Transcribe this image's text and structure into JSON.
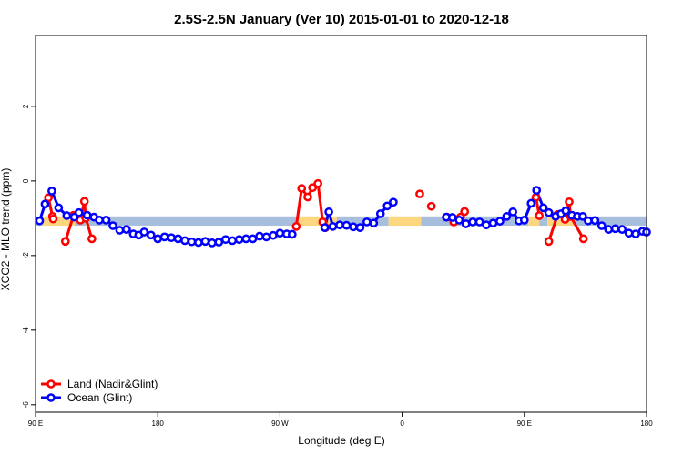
{
  "chart_data": {
    "type": "line",
    "title": "2.5S-2.5N January (Ver 10)   2015-01-01 to 2020-12-18",
    "xlabel": "Longitude (deg E)",
    "ylabel": "XCO2 - MLO trend (ppm)",
    "xlim": [
      90,
      540
    ],
    "ylim": [
      -6.2,
      3.9
    ],
    "x_ticks": [
      {
        "value": 90,
        "label": "90 E"
      },
      {
        "value": 180,
        "label": "180"
      },
      {
        "value": 270,
        "label": "90 W"
      },
      {
        "value": 360,
        "label": "0"
      },
      {
        "value": 450,
        "label": "90 E"
      },
      {
        "value": 540,
        "label": "180"
      }
    ],
    "y_ticks": [
      {
        "value": -6,
        "label": "-6"
      },
      {
        "value": -4,
        "label": "-4"
      },
      {
        "value": -2,
        "label": "-2"
      },
      {
        "value": 0,
        "label": "0"
      },
      {
        "value": 2,
        "label": "2"
      }
    ],
    "legend_position": "bottom-left",
    "band": {
      "y_low": -1.2,
      "y_high": -0.95,
      "ocean_color": "#a8bedd",
      "land_color": "#fcd77f",
      "segments": [
        {
          "type": "ocean",
          "x0": 90,
          "x1": 95
        },
        {
          "type": "land",
          "x0": 95,
          "x1": 119
        },
        {
          "type": "ocean",
          "x0": 119,
          "x1": 127
        },
        {
          "type": "land",
          "x0": 127,
          "x1": 129
        },
        {
          "type": "ocean",
          "x0": 129,
          "x1": 282
        },
        {
          "type": "land",
          "x0": 282,
          "x1": 312
        },
        {
          "type": "ocean",
          "x0": 312,
          "x1": 350
        },
        {
          "type": "land",
          "x0": 350,
          "x1": 374
        },
        {
          "type": "ocean",
          "x0": 374,
          "x1": 453
        },
        {
          "type": "land",
          "x0": 453,
          "x1": 461
        },
        {
          "type": "ocean",
          "x0": 461,
          "x1": 467
        },
        {
          "type": "land",
          "x0": 467,
          "x1": 488
        },
        {
          "type": "ocean",
          "x0": 488,
          "x1": 540
        }
      ]
    },
    "series": [
      {
        "name": "Land (Nadir&Glint)",
        "color": "#ff0000",
        "segments": [
          [
            [
              99.5,
              -0.45
            ],
            [
              102.5,
              -0.95
            ],
            [
              103,
              -1.02
            ]
          ],
          [
            [
              112,
              -1.62
            ],
            [
              118,
              -0.92
            ],
            [
              123,
              -1.05
            ],
            [
              126,
              -0.55
            ],
            [
              127,
              -1.0
            ],
            [
              131.5,
              -1.55
            ]
          ],
          [
            [
              282,
              -1.22
            ],
            [
              286,
              -0.2
            ],
            [
              290.5,
              -0.43
            ],
            [
              294,
              -0.18
            ],
            [
              298,
              -0.07
            ],
            [
              301.5,
              -1.1
            ],
            [
              303.5,
              -1.25
            ]
          ],
          [
            [
              373,
              -0.35
            ]
          ],
          [
            [
              381.5,
              -0.68
            ]
          ],
          [
            [
              393,
              -0.97
            ],
            [
              398,
              -1.1
            ],
            [
              403,
              -0.97
            ],
            [
              406,
              -0.82
            ]
          ],
          [
            [
              458.5,
              -0.44
            ],
            [
              461,
              -0.93
            ]
          ],
          [
            [
              468,
              -1.62
            ],
            [
              474.5,
              -0.9
            ],
            [
              480,
              -1.03
            ],
            [
              483,
              -0.56
            ],
            [
              484,
              -0.95
            ],
            [
              493.5,
              -1.55
            ]
          ]
        ]
      },
      {
        "name": "Ocean (Glint)",
        "color": "#0000ff",
        "segments": [
          [
            [
              93,
              -1.07
            ],
            [
              97,
              -0.62
            ],
            [
              102,
              -0.27
            ],
            [
              107,
              -0.72
            ],
            [
              113,
              -0.93
            ],
            [
              118.5,
              -0.97
            ],
            [
              122,
              -0.85
            ],
            [
              128,
              -0.92
            ],
            [
              133,
              -0.97
            ],
            [
              137,
              -1.05
            ],
            [
              142,
              -1.05
            ],
            [
              147,
              -1.2
            ],
            [
              152,
              -1.32
            ],
            [
              157,
              -1.3
            ],
            [
              162,
              -1.42
            ],
            [
              166,
              -1.45
            ],
            [
              170,
              -1.37
            ],
            [
              175,
              -1.45
            ],
            [
              180,
              -1.55
            ],
            [
              185,
              -1.5
            ],
            [
              190,
              -1.52
            ],
            [
              195,
              -1.55
            ],
            [
              200,
              -1.6
            ],
            [
              205,
              -1.63
            ],
            [
              210,
              -1.65
            ],
            [
              215,
              -1.62
            ],
            [
              220,
              -1.66
            ],
            [
              225,
              -1.64
            ],
            [
              230,
              -1.57
            ],
            [
              235,
              -1.6
            ],
            [
              240,
              -1.57
            ],
            [
              245,
              -1.55
            ],
            [
              250,
              -1.55
            ],
            [
              255,
              -1.48
            ],
            [
              260,
              -1.5
            ],
            [
              265,
              -1.46
            ],
            [
              270,
              -1.4
            ],
            [
              275,
              -1.42
            ],
            [
              279,
              -1.43
            ]
          ],
          [
            [
              303,
              -1.25
            ],
            [
              306,
              -0.83
            ],
            [
              309,
              -1.22
            ],
            [
              314,
              -1.18
            ],
            [
              319,
              -1.19
            ],
            [
              324,
              -1.23
            ],
            [
              329,
              -1.25
            ],
            [
              334,
              -1.1
            ],
            [
              339,
              -1.13
            ],
            [
              344,
              -0.88
            ],
            [
              349,
              -0.67
            ],
            [
              353.5,
              -0.57
            ]
          ],
          [
            [
              392.5,
              -0.97
            ],
            [
              397,
              -0.98
            ],
            [
              402,
              -1.05
            ],
            [
              407,
              -1.15
            ],
            [
              412,
              -1.1
            ],
            [
              417,
              -1.1
            ],
            [
              422,
              -1.18
            ],
            [
              427,
              -1.13
            ],
            [
              432,
              -1.08
            ],
            [
              437,
              -0.95
            ],
            [
              441.5,
              -0.83
            ],
            [
              446,
              -1.07
            ],
            [
              450,
              -1.05
            ],
            [
              455,
              -0.6
            ],
            [
              459,
              -0.25
            ],
            [
              464,
              -0.72
            ]
          ],
          [
            [
              468,
              -0.85
            ],
            [
              473,
              -0.95
            ],
            [
              477,
              -0.88
            ],
            [
              480.5,
              -0.8
            ],
            [
              485,
              -0.92
            ],
            [
              489,
              -0.95
            ],
            [
              493,
              -0.95
            ],
            [
              497,
              -1.07
            ],
            [
              502,
              -1.06
            ],
            [
              507,
              -1.2
            ],
            [
              512,
              -1.3
            ],
            [
              517,
              -1.28
            ],
            [
              522,
              -1.3
            ],
            [
              527,
              -1.4
            ],
            [
              532,
              -1.42
            ],
            [
              537,
              -1.35
            ],
            [
              540,
              -1.37
            ]
          ]
        ]
      }
    ]
  }
}
